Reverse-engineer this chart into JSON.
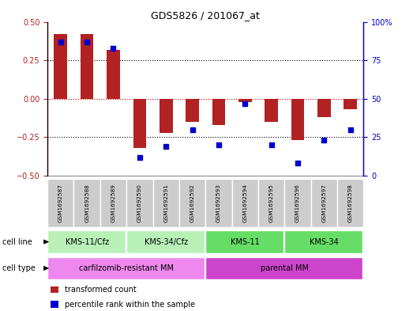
{
  "title": "GDS5826 / 201067_at",
  "samples": [
    "GSM1692587",
    "GSM1692588",
    "GSM1692589",
    "GSM1692590",
    "GSM1692591",
    "GSM1692592",
    "GSM1692593",
    "GSM1692594",
    "GSM1692595",
    "GSM1692596",
    "GSM1692597",
    "GSM1692598"
  ],
  "transformed_count": [
    0.42,
    0.42,
    0.32,
    -0.32,
    -0.22,
    -0.15,
    -0.17,
    -0.02,
    -0.15,
    -0.27,
    -0.12,
    -0.07
  ],
  "percentile_rank": [
    87,
    87,
    83,
    12,
    19,
    30,
    20,
    47,
    20,
    8,
    23,
    30
  ],
  "bar_color": "#b22222",
  "dot_color": "#0000cd",
  "ylim_left": [
    -0.5,
    0.5
  ],
  "ylim_right": [
    0,
    100
  ],
  "yticks_left": [
    -0.5,
    -0.25,
    0,
    0.25,
    0.5
  ],
  "yticks_right": [
    0,
    25,
    50,
    75,
    100
  ],
  "cell_line_groups": [
    {
      "label": "KMS-11/Cfz",
      "start": 0,
      "end": 3,
      "color": "#b8f0b8"
    },
    {
      "label": "KMS-34/Cfz",
      "start": 3,
      "end": 6,
      "color": "#b8f0b8"
    },
    {
      "label": "KMS-11",
      "start": 6,
      "end": 9,
      "color": "#66dd66"
    },
    {
      "label": "KMS-34",
      "start": 9,
      "end": 12,
      "color": "#66dd66"
    }
  ],
  "cell_type_groups": [
    {
      "label": "carfilzomib-resistant MM",
      "start": 0,
      "end": 6,
      "color": "#ee88ee"
    },
    {
      "label": "parental MM",
      "start": 6,
      "end": 12,
      "color": "#cc44cc"
    }
  ],
  "cell_line_label": "cell line",
  "cell_type_label": "cell type",
  "legend_items": [
    {
      "color": "#b22222",
      "label": "transformed count"
    },
    {
      "color": "#0000cd",
      "label": "percentile rank within the sample"
    }
  ],
  "background_color": "#ffffff",
  "plot_bg": "#ffffff",
  "grid_color": "#000000",
  "zero_line_color": "#cc0000",
  "sample_bg": "#cccccc"
}
